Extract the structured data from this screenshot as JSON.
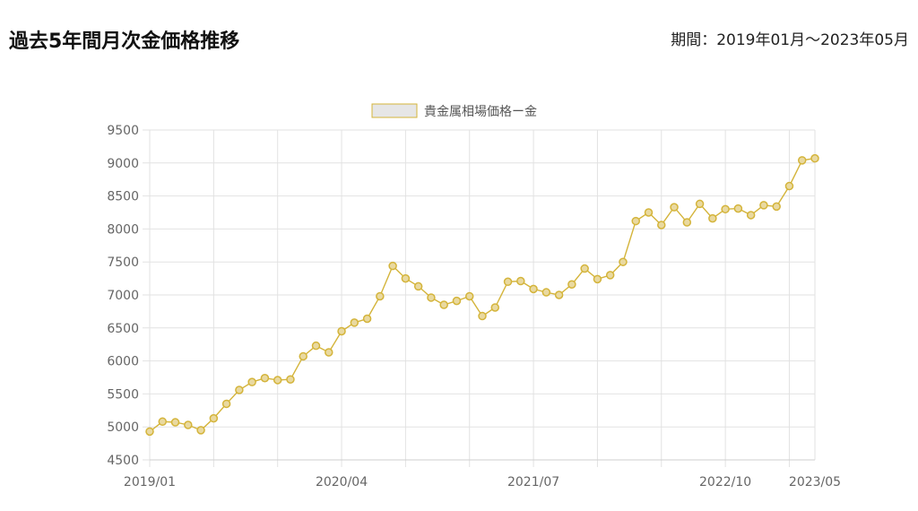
{
  "page": {
    "title": "過去5年間月次金価格推移",
    "period_label": "期間：2019年01月～2023年05月"
  },
  "colors": {
    "series": "#d4b43a",
    "point_fill": "#e9d9a0",
    "grid": "#e2e2e2",
    "legend_box": "#e6e6e6"
  },
  "chart_data": {
    "type": "line",
    "title": "",
    "xlabel": "",
    "ylabel": "",
    "ylim": [
      4500,
      9500
    ],
    "yticks": [
      4500,
      5000,
      5500,
      6000,
      6500,
      7000,
      7500,
      8000,
      8500,
      9000,
      9500
    ],
    "x_tick_labels": [
      {
        "index": 0,
        "label": "2019/01"
      },
      {
        "index": 15,
        "label": "2020/04"
      },
      {
        "index": 30,
        "label": "2021/07"
      },
      {
        "index": 45,
        "label": "2022/10"
      },
      {
        "index": 52,
        "label": "2023/05"
      }
    ],
    "grid": true,
    "legend_position": "top-center",
    "series": [
      {
        "name": "貴金属相場価格ー金",
        "x": [
          "2019/01",
          "2019/02",
          "2019/03",
          "2019/04",
          "2019/05",
          "2019/06",
          "2019/07",
          "2019/08",
          "2019/09",
          "2019/10",
          "2019/11",
          "2019/12",
          "2020/01",
          "2020/02",
          "2020/03",
          "2020/04",
          "2020/05",
          "2020/06",
          "2020/07",
          "2020/08",
          "2020/09",
          "2020/10",
          "2020/11",
          "2020/12",
          "2021/01",
          "2021/02",
          "2021/03",
          "2021/04",
          "2021/05",
          "2021/06",
          "2021/07",
          "2021/08",
          "2021/09",
          "2021/10",
          "2021/11",
          "2021/12",
          "2022/01",
          "2022/02",
          "2022/03",
          "2022/04",
          "2022/05",
          "2022/06",
          "2022/07",
          "2022/08",
          "2022/09",
          "2022/10",
          "2022/11",
          "2022/12",
          "2023/01",
          "2023/02",
          "2023/03",
          "2023/04",
          "2023/05"
        ],
        "values": [
          4930,
          5080,
          5070,
          5030,
          4950,
          5130,
          5350,
          5560,
          5680,
          5740,
          5710,
          5720,
          6070,
          6230,
          6130,
          6450,
          6580,
          6640,
          6980,
          7440,
          7250,
          7130,
          6960,
          6850,
          6910,
          6980,
          6680,
          6810,
          7200,
          7210,
          7090,
          7040,
          7000,
          7160,
          7400,
          7240,
          7300,
          7500,
          8120,
          8250,
          8060,
          8330,
          8100,
          8380,
          8160,
          8300,
          8310,
          8210,
          8360,
          8340,
          8650,
          9040,
          9070
        ]
      }
    ]
  }
}
